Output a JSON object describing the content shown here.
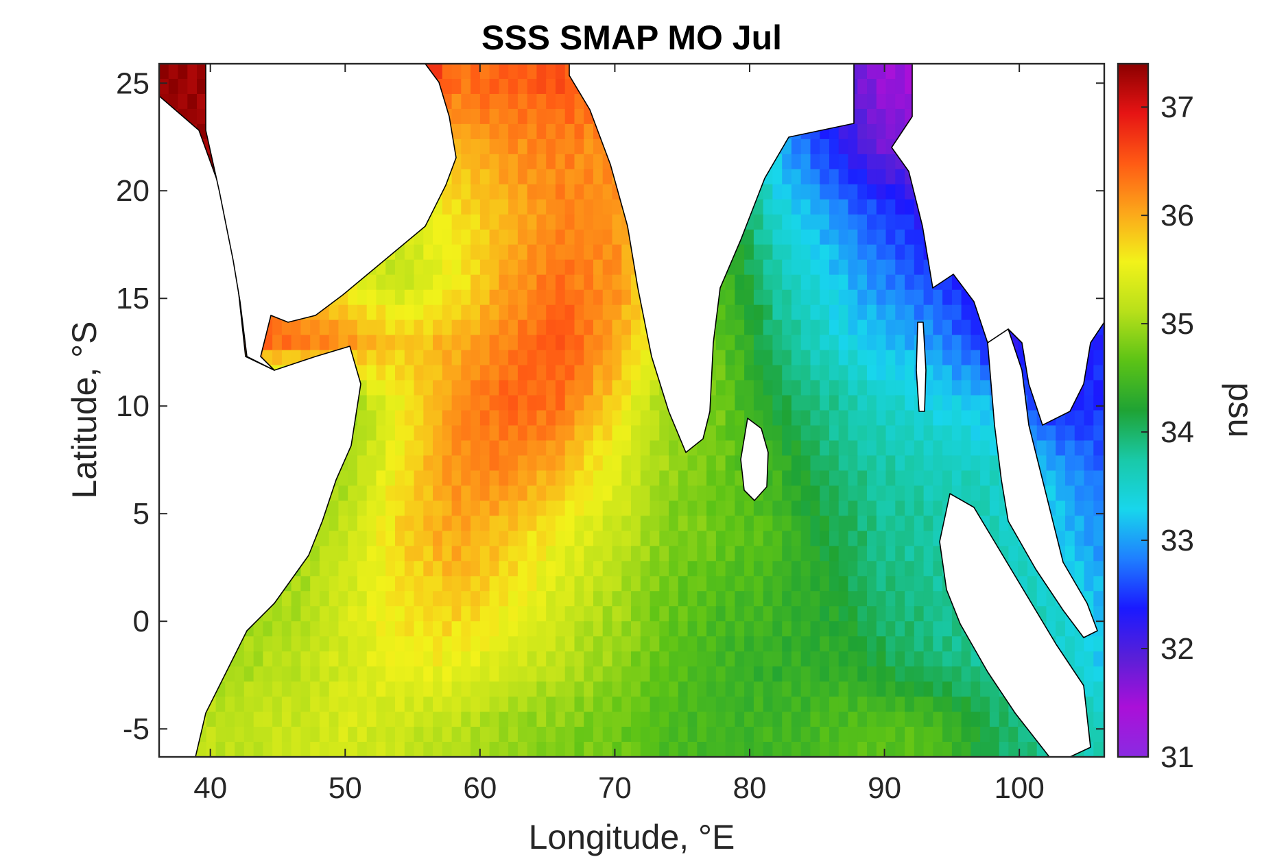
{
  "figure": {
    "title": "SSS SMAP MO Jul",
    "xlabel": "Longitude, °E",
    "ylabel": "Latitude, °S"
  },
  "colorbar": {
    "label": "psu",
    "range": [
      31,
      37.4
    ],
    "ticks": [
      {
        "value": 31,
        "label": "31"
      },
      {
        "value": 32,
        "label": "32"
      },
      {
        "value": 33,
        "label": "33"
      },
      {
        "value": 34,
        "label": "34"
      },
      {
        "value": 35,
        "label": "35"
      },
      {
        "value": 36,
        "label": "36"
      },
      {
        "value": 37,
        "label": "37"
      }
    ],
    "colors": [
      "#8a2be2",
      "#aa10d8",
      "#5a1fd8",
      "#1a1aff",
      "#1f7fff",
      "#18d6ec",
      "#19c9a8",
      "#1fa334",
      "#5cc316",
      "#b8e01a",
      "#f2f21a",
      "#fca61a",
      "#ff5a14",
      "#e61414",
      "#8b0000"
    ]
  },
  "chart_data": {
    "type": "heatmap",
    "title": "SSS SMAP MO Jul",
    "xlabel": "Longitude, °E",
    "ylabel": "Latitude, °S",
    "xlim": [
      36.2,
      106.3
    ],
    "ylim": [
      -6.3,
      25.9
    ],
    "xticks": [
      {
        "value": 40,
        "label": "40"
      },
      {
        "value": 50,
        "label": "50"
      },
      {
        "value": 60,
        "label": "60"
      },
      {
        "value": 70,
        "label": "70"
      },
      {
        "value": 80,
        "label": "80"
      },
      {
        "value": 90,
        "label": "90"
      },
      {
        "value": 100,
        "label": "100"
      }
    ],
    "yticks": [
      {
        "value": -5,
        "label": "-5"
      },
      {
        "value": 0,
        "label": "0"
      },
      {
        "value": 5,
        "label": "5"
      },
      {
        "value": 10,
        "label": "10"
      },
      {
        "value": 15,
        "label": "15"
      },
      {
        "value": 20,
        "label": "20"
      },
      {
        "value": 25,
        "label": "25"
      }
    ],
    "value_label": "psu",
    "lons": [
      38,
      42,
      46,
      50,
      54,
      58,
      62,
      66,
      70,
      74,
      78,
      82,
      86,
      90,
      94,
      98,
      102,
      106
    ],
    "lats": [
      -5,
      -2,
      1,
      4,
      7,
      10,
      13,
      16,
      19,
      22,
      25
    ],
    "values_psu": [
      [
        35.3,
        35.2,
        35.3,
        35.4,
        35.3,
        35.2,
        35.0,
        34.9,
        34.8,
        34.6,
        34.5,
        34.5,
        34.6,
        34.7,
        34.6,
        34.1,
        33.9,
        33.7
      ],
      [
        35.2,
        35.1,
        35.2,
        35.4,
        35.6,
        35.6,
        35.4,
        35.2,
        35.0,
        34.7,
        34.5,
        34.4,
        34.4,
        34.2,
        34.0,
        33.9,
        33.7,
        33.3
      ],
      [
        35.0,
        35.0,
        35.1,
        35.4,
        35.7,
        35.9,
        35.7,
        35.4,
        35.1,
        34.8,
        34.6,
        34.5,
        34.3,
        34.0,
        33.9,
        33.8,
        33.6,
        33.2
      ],
      [
        34.8,
        34.8,
        34.9,
        35.3,
        35.8,
        36.1,
        35.9,
        35.6,
        35.3,
        34.9,
        34.8,
        34.6,
        34.2,
        33.9,
        33.8,
        33.7,
        33.4,
        33.0
      ],
      [
        34.6,
        34.6,
        34.7,
        35.1,
        35.7,
        36.2,
        36.3,
        36.0,
        35.5,
        35.0,
        34.8,
        34.5,
        34.0,
        33.8,
        33.7,
        33.6,
        33.2,
        32.8
      ],
      [
        34.5,
        34.5,
        34.6,
        34.9,
        35.6,
        36.2,
        36.5,
        36.4,
        35.8,
        35.0,
        34.8,
        34.2,
        33.9,
        33.6,
        33.4,
        33.2,
        32.5,
        32.5
      ],
      [
        36.8,
        36.6,
        36.4,
        36.2,
        35.9,
        36.0,
        36.3,
        36.6,
        36.1,
        35.4,
        34.7,
        34.0,
        33.5,
        33.2,
        33.0,
        32.4,
        32.2,
        32.5
      ],
      [
        37.4,
        37.4,
        35.8,
        35.6,
        35.2,
        35.6,
        36.1,
        36.4,
        36.2,
        35.6,
        34.6,
        33.8,
        33.3,
        32.9,
        32.6,
        32.2,
        32.0,
        32.5
      ],
      [
        37.4,
        37.4,
        35.5,
        35.5,
        35.5,
        35.7,
        36.0,
        36.3,
        36.2,
        35.7,
        34.5,
        33.5,
        33.0,
        32.6,
        32.2,
        31.9,
        31.8,
        32.0
      ],
      [
        37.4,
        37.4,
        35.6,
        35.6,
        35.8,
        36.0,
        36.2,
        36.3,
        36.2,
        35.8,
        34.4,
        33.2,
        32.5,
        31.8,
        31.8,
        31.7,
        31.7,
        31.8
      ],
      [
        37.4,
        37.4,
        37.4,
        37.4,
        37.4,
        36.4,
        36.5,
        36.6,
        36.4,
        35.9,
        34.3,
        33.0,
        32.2,
        31.6,
        31.6,
        31.6,
        31.6,
        31.6
      ]
    ]
  }
}
